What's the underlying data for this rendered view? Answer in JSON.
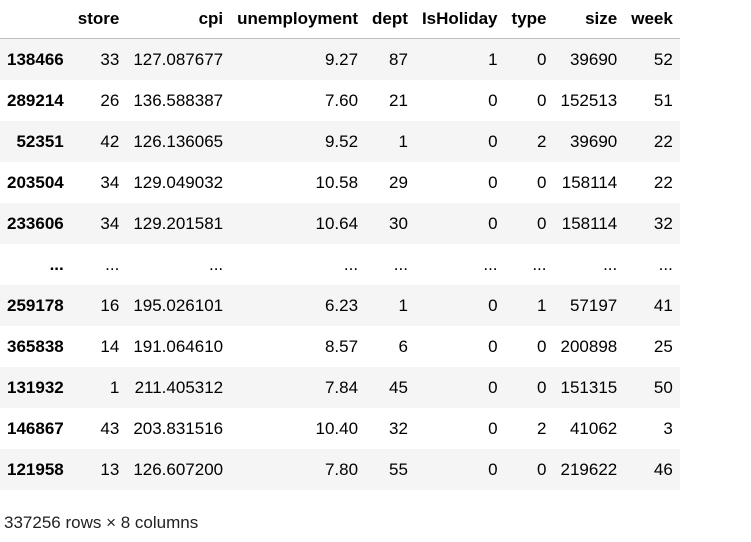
{
  "table": {
    "index_header": "",
    "columns": [
      "store",
      "cpi",
      "unemployment",
      "dept",
      "IsHoliday",
      "type",
      "size",
      "week"
    ],
    "rows": [
      {
        "index": "138466",
        "cells": [
          "33",
          "127.087677",
          "9.27",
          "87",
          "1",
          "0",
          "39690",
          "52"
        ]
      },
      {
        "index": "289214",
        "cells": [
          "26",
          "136.588387",
          "7.60",
          "21",
          "0",
          "0",
          "152513",
          "51"
        ]
      },
      {
        "index": "52351",
        "cells": [
          "42",
          "126.136065",
          "9.52",
          "1",
          "0",
          "2",
          "39690",
          "22"
        ]
      },
      {
        "index": "203504",
        "cells": [
          "34",
          "129.049032",
          "10.58",
          "29",
          "0",
          "0",
          "158114",
          "22"
        ]
      },
      {
        "index": "233606",
        "cells": [
          "34",
          "129.201581",
          "10.64",
          "30",
          "0",
          "0",
          "158114",
          "32"
        ]
      },
      {
        "index": "...",
        "cells": [
          "...",
          "...",
          "...",
          "...",
          "...",
          "...",
          "...",
          "..."
        ]
      },
      {
        "index": "259178",
        "cells": [
          "16",
          "195.026101",
          "6.23",
          "1",
          "0",
          "1",
          "57197",
          "41"
        ]
      },
      {
        "index": "365838",
        "cells": [
          "14",
          "191.064610",
          "8.57",
          "6",
          "0",
          "0",
          "200898",
          "25"
        ]
      },
      {
        "index": "131932",
        "cells": [
          "1",
          "211.405312",
          "7.84",
          "45",
          "0",
          "0",
          "151315",
          "50"
        ]
      },
      {
        "index": "146867",
        "cells": [
          "43",
          "203.831516",
          "10.40",
          "32",
          "0",
          "2",
          "41062",
          "3"
        ]
      },
      {
        "index": "121958",
        "cells": [
          "13",
          "126.607200",
          "7.80",
          "55",
          "0",
          "0",
          "219622",
          "46"
        ]
      }
    ]
  },
  "footer": {
    "shape_text": "337256 rows × 8 columns"
  }
}
